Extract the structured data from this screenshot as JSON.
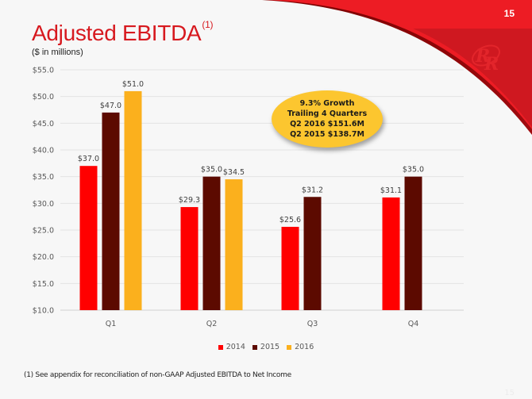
{
  "slide": {
    "page_number": "15",
    "title": "Adjusted EBITDA",
    "title_footnote_marker": "(1)",
    "subtitle": "($ in millions)",
    "footnote": "(1) See appendix for reconciliation of non-GAAP Adjusted EBITDA to Net Income",
    "logo": "rr-logo-icon",
    "colors": {
      "brand_red": "#ed1c24",
      "title_red": "#d7191f"
    }
  },
  "callout": {
    "lines": [
      "9.3% Growth",
      "Trailing 4 Quarters",
      "Q2 2016 $151.6M",
      "Q2 2015 $138.7M"
    ],
    "color": "#fcc62f"
  },
  "chart_data": {
    "type": "bar",
    "title": "Adjusted EBITDA",
    "xlabel": "",
    "ylabel": "",
    "categories": [
      "Q1",
      "Q2",
      "Q3",
      "Q4"
    ],
    "series": [
      {
        "name": "2014",
        "color": "#ff0000",
        "values": [
          37.0,
          29.3,
          25.6,
          31.1
        ],
        "labels": [
          "$37.0",
          "$29.3",
          "$25.6",
          "$31.1"
        ]
      },
      {
        "name": "2015",
        "color": "#5c0a00",
        "values": [
          47.0,
          35.0,
          31.2,
          35.0
        ],
        "labels": [
          "$47.0",
          "$35.0",
          "$31.2",
          "$35.0"
        ]
      },
      {
        "name": "2016",
        "color": "#fbb01d",
        "values": [
          51.0,
          34.5,
          null,
          null
        ],
        "labels": [
          "$51.0",
          "$34.5",
          null,
          null
        ]
      }
    ],
    "ylim": [
      10,
      55
    ],
    "yticks": [
      10,
      15,
      20,
      25,
      30,
      35,
      40,
      45,
      50,
      55
    ],
    "ytick_labels": [
      "$10.0",
      "$15.0",
      "$20.0",
      "$25.0",
      "$30.0",
      "$35.0",
      "$40.0",
      "$45.0",
      "$50.0",
      "$55.0"
    ],
    "grid": true,
    "legend": [
      "2014",
      "2015",
      "2016"
    ],
    "legend_position": "bottom"
  }
}
